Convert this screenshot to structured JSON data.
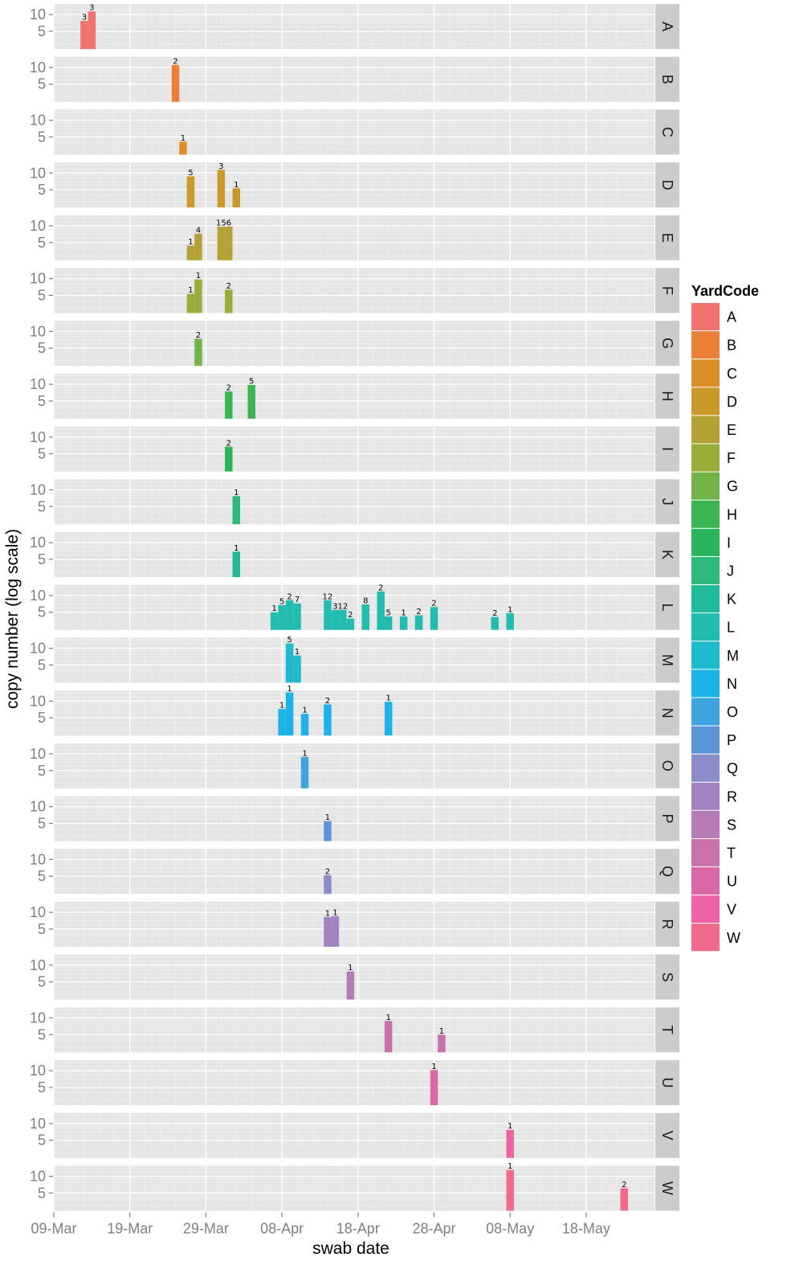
{
  "chart_data": {
    "type": "bar",
    "subtype": "faceted-histogram",
    "title": "",
    "xlabel": "swab date",
    "ylabel": "copy number (log scale)",
    "y_scale": "log10",
    "ylim": [
      2.4,
      15.5
    ],
    "y_ticks": [
      10,
      5
    ],
    "y_tick_labels": [
      "10",
      "5"
    ],
    "x_start_date": "09-Mar",
    "x_range_days": [
      0,
      79
    ],
    "x_ticks_days": [
      0,
      10,
      20,
      30,
      40,
      50,
      60,
      70
    ],
    "x_tick_labels": [
      "09-Mar",
      "19-Mar",
      "29-Mar",
      "08-Apr",
      "18-Apr",
      "28-Apr",
      "08-May",
      "18-May"
    ],
    "bar_width_days": 1,
    "grid": true,
    "legend": {
      "title": "YardCode",
      "position": "right"
    },
    "facets": [
      {
        "code": "A",
        "color": "#F8766D",
        "bars": [
          {
            "date": "13-Mar",
            "day": 4,
            "value": 7.7,
            "label": "3"
          },
          {
            "date": "14-Mar",
            "day": 5,
            "value": 11.4,
            "label": "3"
          }
        ]
      },
      {
        "code": "B",
        "color": "#EA8331",
        "bars": [
          {
            "date": "25-Mar",
            "day": 16,
            "value": 11.0,
            "label": "2"
          }
        ]
      },
      {
        "code": "C",
        "color": "#D89000",
        "bars": [
          {
            "date": "26-Mar",
            "day": 17,
            "value": 4.1,
            "label": "1"
          }
        ]
      },
      {
        "code": "D",
        "color": "#C09B00",
        "bars": [
          {
            "date": "27-Mar",
            "day": 18,
            "value": 8.7,
            "label": "5"
          },
          {
            "date": "31-Mar",
            "day": 22,
            "value": 11.4,
            "label": "3"
          },
          {
            "date": "02-Apr",
            "day": 24,
            "value": 5.3,
            "label": "1"
          }
        ]
      },
      {
        "code": "E",
        "color": "#A3A500",
        "bars": [
          {
            "date": "27-Mar",
            "day": 18,
            "value": 4.4,
            "label": "1"
          },
          {
            "date": "28-Mar",
            "day": 19,
            "value": 7.2,
            "label": "4"
          },
          {
            "date": "31-Mar",
            "day": 22,
            "value": 9.7,
            "label": "15"
          },
          {
            "date": "01-Apr",
            "day": 23,
            "value": 9.7,
            "label": "6"
          }
        ]
      },
      {
        "code": "F",
        "color": "#7CAE00",
        "bars": [
          {
            "date": "27-Mar",
            "day": 18,
            "value": 5.3,
            "label": "1"
          },
          {
            "date": "28-Mar",
            "day": 19,
            "value": 9.7,
            "label": "1"
          },
          {
            "date": "01-Apr",
            "day": 23,
            "value": 6.3,
            "label": "2"
          }
        ]
      },
      {
        "code": "G",
        "color": "#39B600",
        "bars": [
          {
            "date": "28-Mar",
            "day": 19,
            "value": 7.4,
            "label": "2"
          }
        ]
      },
      {
        "code": "H",
        "color": "#00BB4E",
        "bars": [
          {
            "date": "01-Apr",
            "day": 23,
            "value": 7.4,
            "label": "2"
          },
          {
            "date": "04-Apr",
            "day": 26,
            "value": 9.7,
            "label": "5"
          }
        ]
      },
      {
        "code": "I",
        "color": "#00BF7D",
        "bars": [
          {
            "date": "01-Apr",
            "day": 23,
            "value": 6.7,
            "label": "2"
          }
        ]
      },
      {
        "code": "J",
        "color": "#00C1A3",
        "bars": [
          {
            "date": "02-Apr",
            "day": 24,
            "value": 7.7,
            "label": "1"
          }
        ]
      },
      {
        "code": "K",
        "color": "#00BFC4",
        "bars": [
          {
            "date": "02-Apr",
            "day": 24,
            "value": 6.9,
            "label": "1"
          }
        ]
      },
      {
        "code": "L",
        "color": "#00BAE0",
        "bars": [
          {
            "date": "07-Apr",
            "day": 29,
            "value": 5.0,
            "label": "1"
          },
          {
            "date": "08-Apr",
            "day": 30,
            "value": 6.7,
            "label": "5"
          },
          {
            "date": "09-Apr",
            "day": 31,
            "value": 8.2,
            "label": "2"
          },
          {
            "date": "10-Apr",
            "day": 32,
            "value": 7.2,
            "label": "7"
          },
          {
            "date": "14-Apr",
            "day": 36,
            "value": 8.2,
            "label": "12"
          },
          {
            "date": "15-Apr",
            "day": 37,
            "value": 5.5,
            "label": "3"
          },
          {
            "date": "16-Apr",
            "day": 38,
            "value": 5.5,
            "label": "12"
          },
          {
            "date": "17-Apr",
            "day": 39,
            "value": 3.85,
            "label": "2"
          },
          {
            "date": "19-Apr",
            "day": 41,
            "value": 6.9,
            "label": "8"
          },
          {
            "date": "21-Apr",
            "day": 43,
            "value": 11.8,
            "label": "2"
          },
          {
            "date": "22-Apr",
            "day": 44,
            "value": 4.2,
            "label": "5"
          },
          {
            "date": "24-Apr",
            "day": 46,
            "value": 4.2,
            "label": "1"
          },
          {
            "date": "26-Apr",
            "day": 48,
            "value": 4.4,
            "label": "2"
          },
          {
            "date": "28-Apr",
            "day": 50,
            "value": 6.2,
            "label": "2"
          },
          {
            "date": "06-May",
            "day": 58,
            "value": 4.1,
            "label": "2"
          },
          {
            "date": "08-May",
            "day": 60,
            "value": 4.8,
            "label": "1"
          }
        ]
      },
      {
        "code": "M",
        "color": "#00B0F6",
        "bars": [
          {
            "date": "09-Apr",
            "day": 31,
            "value": 12.2,
            "label": "5"
          },
          {
            "date": "10-Apr",
            "day": 32,
            "value": 7.4,
            "label": "1"
          }
        ]
      },
      {
        "code": "N",
        "color": "#35A2FF",
        "bars": [
          {
            "date": "08-Apr",
            "day": 30,
            "value": 7.2,
            "label": "1"
          },
          {
            "date": "09-Apr",
            "day": 31,
            "value": 14.3,
            "label": "1"
          },
          {
            "date": "11-Apr",
            "day": 33,
            "value": 5.9,
            "label": "1"
          },
          {
            "date": "14-Apr",
            "day": 36,
            "value": 8.7,
            "label": "2"
          },
          {
            "date": "22-Apr",
            "day": 44,
            "value": 9.7,
            "label": "1"
          }
        ]
      },
      {
        "code": "O",
        "color": "#9590FF",
        "bars": [
          {
            "date": "11-Apr",
            "day": 33,
            "value": 8.8,
            "label": "1"
          }
        ]
      },
      {
        "code": "P",
        "color": "#C77CFF",
        "bars": [
          {
            "date": "14-Apr",
            "day": 36,
            "value": 5.5,
            "label": "1"
          }
        ]
      },
      {
        "code": "Q",
        "color": "#E76BF3",
        "bars": [
          {
            "date": "14-Apr",
            "day": 36,
            "value": 5.2,
            "label": "2"
          }
        ]
      },
      {
        "code": "R",
        "color": "#FA62DB",
        "bars": [
          {
            "date": "14-Apr",
            "day": 36,
            "value": 8.2,
            "label": "1"
          },
          {
            "date": "15-Apr",
            "day": 37,
            "value": 8.5,
            "label": "1"
          }
        ]
      },
      {
        "code": "S",
        "color": "#FF62BC",
        "bars": [
          {
            "date": "17-Apr",
            "day": 39,
            "value": 7.7,
            "label": "1"
          }
        ]
      },
      {
        "code": "T",
        "color": "#FF6C91",
        "bars": [
          {
            "date": "22-Apr",
            "day": 44,
            "value": 8.8,
            "label": "1"
          },
          {
            "date": "29-Apr",
            "day": 51,
            "value": 5.0,
            "label": "1"
          }
        ]
      },
      {
        "code": "U",
        "color": "#FF6C91",
        "bars": [
          {
            "date": "28-Apr",
            "day": 50,
            "value": 10.3,
            "label": "1"
          }
        ]
      },
      {
        "code": "V",
        "color": "#FF6C91",
        "bars": [
          {
            "date": "08-May",
            "day": 60,
            "value": 7.7,
            "label": "1"
          }
        ]
      },
      {
        "code": "W",
        "color": "#FF6C91",
        "bars": [
          {
            "date": "08-May",
            "day": 60,
            "value": 13.0,
            "label": "1"
          },
          {
            "date": "23-May",
            "day": 75,
            "value": 6.1,
            "label": "2"
          }
        ]
      }
    ]
  },
  "palette": {
    "A": "#F2736E",
    "B": "#EA7F3A",
    "C": "#DC8E27",
    "D": "#C99A2A",
    "E": "#B4A236",
    "F": "#9AAC3A",
    "G": "#72B34A",
    "H": "#3CB453",
    "I": "#2CB45D",
    "J": "#2DBA7A",
    "K": "#22BB99",
    "L": "#22BCB0",
    "M": "#1FBBCC",
    "N": "#1DB3E6",
    "O": "#3FA3DF",
    "P": "#5C95D3",
    "Q": "#8B8CC8",
    "R": "#A282C0",
    "S": "#B67AB6",
    "T": "#C971AB",
    "U": "#DA68A6",
    "V": "#EE62A5",
    "W": "#F16A8C"
  },
  "legend_items": [
    "A",
    "B",
    "C",
    "D",
    "E",
    "F",
    "G",
    "H",
    "I",
    "J",
    "K",
    "L",
    "M",
    "N",
    "O",
    "P",
    "Q",
    "R",
    "S",
    "T",
    "U",
    "V",
    "W"
  ]
}
